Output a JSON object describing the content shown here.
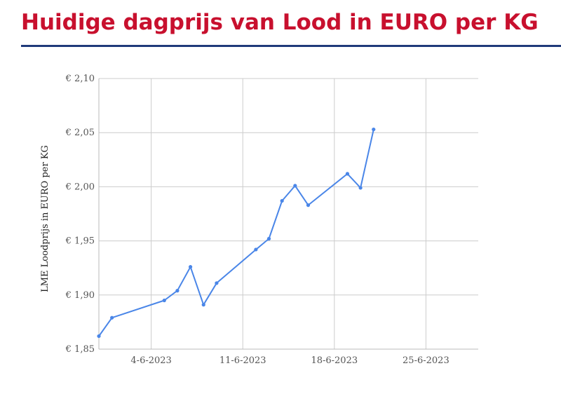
{
  "header": {
    "title": "Huidige dagprijs van Lood in EURO per KG"
  },
  "colors": {
    "title": "#c8102e",
    "divider": "#1f3a7a",
    "series": "#4a86e8",
    "grid": "#cccccc"
  },
  "chart_data": {
    "type": "line",
    "ylabel": "LME Loodprijs in EURO per KG",
    "xlabel": "",
    "ylim": [
      1.85,
      2.1
    ],
    "y_ticks": [
      {
        "value": 1.85,
        "label": "€ 1,85"
      },
      {
        "value": 1.9,
        "label": "€ 1,90"
      },
      {
        "value": 1.95,
        "label": "€ 1,95"
      },
      {
        "value": 2.0,
        "label": "€ 2,00"
      },
      {
        "value": 2.05,
        "label": "€ 2,05"
      },
      {
        "value": 2.1,
        "label": "€ 2,10"
      }
    ],
    "xlim": [
      "2023-05-31",
      "2023-06-29"
    ],
    "x_ticks": [
      {
        "value": "2023-06-04",
        "label": "4-6-2023"
      },
      {
        "value": "2023-06-11",
        "label": "11-6-2023"
      },
      {
        "value": "2023-06-18",
        "label": "18-6-2023"
      },
      {
        "value": "2023-06-25",
        "label": "25-6-2023"
      }
    ],
    "grid": true,
    "legend": "none",
    "series": [
      {
        "points": [
          {
            "x": "2023-05-31",
            "y": 1.862
          },
          {
            "x": "2023-06-01",
            "y": 1.879
          },
          {
            "x": "2023-06-05",
            "y": 1.895
          },
          {
            "x": "2023-06-06",
            "y": 1.904
          },
          {
            "x": "2023-06-07",
            "y": 1.926
          },
          {
            "x": "2023-06-08",
            "y": 1.891
          },
          {
            "x": "2023-06-09",
            "y": 1.911
          },
          {
            "x": "2023-06-12",
            "y": 1.942
          },
          {
            "x": "2023-06-13",
            "y": 1.952
          },
          {
            "x": "2023-06-14",
            "y": 1.987
          },
          {
            "x": "2023-06-15",
            "y": 2.001
          },
          {
            "x": "2023-06-16",
            "y": 1.983
          },
          {
            "x": "2023-06-19",
            "y": 2.012
          },
          {
            "x": "2023-06-20",
            "y": 1.999
          },
          {
            "x": "2023-06-21",
            "y": 2.053
          }
        ]
      }
    ]
  }
}
